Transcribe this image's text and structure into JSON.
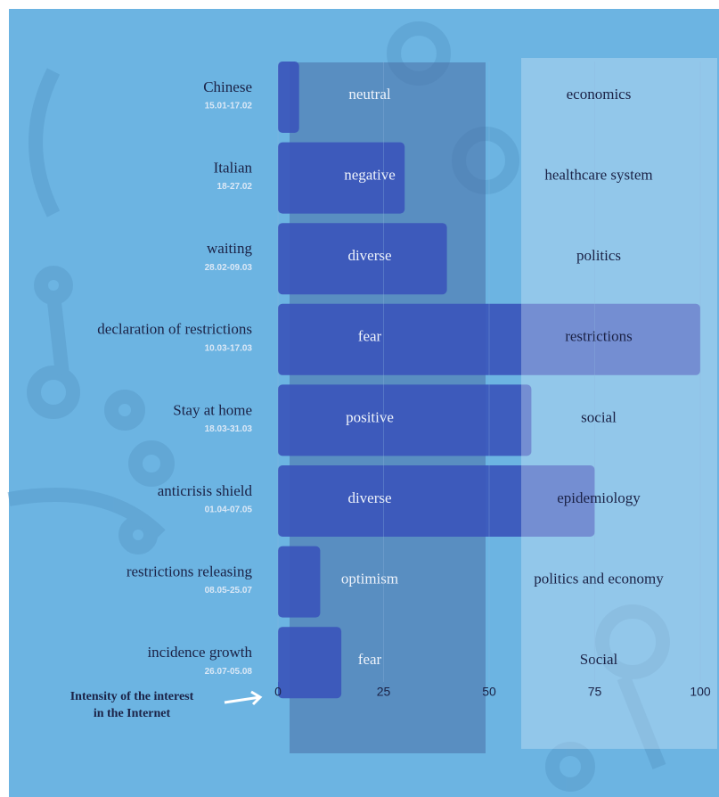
{
  "chart_data": {
    "type": "bar",
    "orientation": "horizontal",
    "categories": [
      "Chinese",
      "Italian",
      "waiting",
      "declaration of restrictions",
      "Stay at home",
      "anticrisis shield",
      "restrictions releasing",
      "incidence growth"
    ],
    "dates": [
      "15.01-17.02",
      "18-27.02",
      "28.02-09.03",
      "10.03-17.03",
      "18.03-31.03",
      "01.04-07.05",
      "08.05-25.07",
      "26.07-05.08"
    ],
    "sentiments": [
      "neutral",
      "negative",
      "diverse",
      "fear",
      "positive",
      "diverse",
      "optimism",
      "fear"
    ],
    "topics": [
      "economics",
      "healthcare system",
      "politics",
      "restrictions",
      "social",
      "epidemiology",
      "politics and economy",
      "Social"
    ],
    "values": [
      5,
      30,
      40,
      100,
      60,
      75,
      10,
      15
    ],
    "color": "#3b56bb",
    "xlim": [
      0,
      100
    ],
    "xticks": [
      0,
      25,
      50,
      75,
      100
    ],
    "xlabel": [
      "Intensity of the interest",
      "in the Internet"
    ]
  }
}
